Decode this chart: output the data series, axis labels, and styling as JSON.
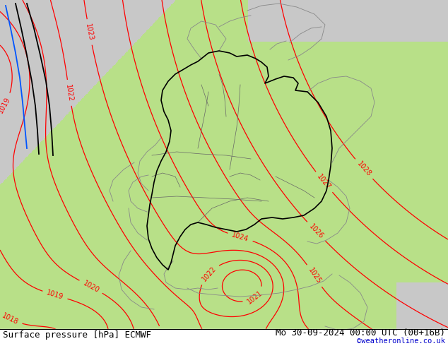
{
  "title_left": "Surface pressure [hPa] ECMWF",
  "title_right": "Mo 30-09-2024 00:00 UTC (00+16B)",
  "copyright": "©weatheronline.co.uk",
  "bg_gray": "#c8c8c8",
  "land_green": "#b8e088",
  "isobar_red": "#ff0000",
  "border_black": "#000000",
  "border_gray": "#888888",
  "front_blue": "#0055ff",
  "text_black": "#000000",
  "text_blue": "#0000cc",
  "bottom_bar_color": "#ffffff",
  "font_size_bottom": 9,
  "font_size_label": 7,
  "pressure_min": 1016,
  "pressure_max": 1028
}
